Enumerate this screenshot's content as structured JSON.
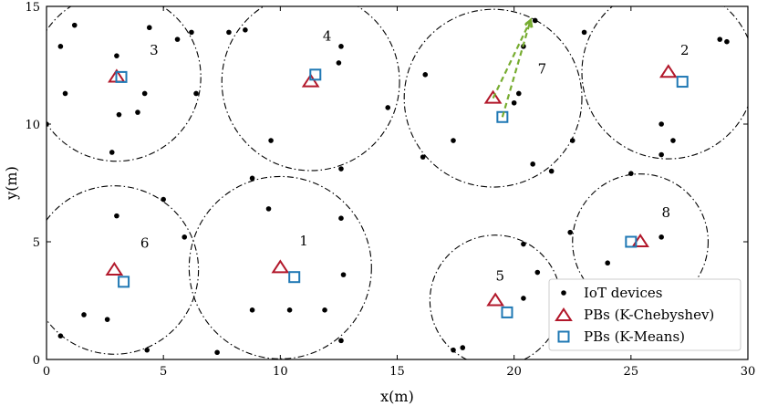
{
  "chart_data": {
    "type": "scatter",
    "xlabel": "x(m)",
    "ylabel": "y(m)",
    "xlim": [
      0,
      30
    ],
    "ylim": [
      0,
      15
    ],
    "xticks": [
      0,
      5,
      10,
      15,
      20,
      25,
      30
    ],
    "yticks": [
      0,
      5,
      10,
      15
    ],
    "grid": false,
    "legend_placement": "bottom-right",
    "colors": {
      "iot": "#000000",
      "chebyshev": "#b2182b",
      "kmeans": "#1f78b4",
      "circle": "#000000",
      "arrow": "#77ac30"
    },
    "series": [
      {
        "name": "IoT devices",
        "marker": "dot",
        "points": [
          [
            0.6,
            13.3
          ],
          [
            1.2,
            14.2
          ],
          [
            0.8,
            11.3
          ],
          [
            3.0,
            12.9
          ],
          [
            4.4,
            14.1
          ],
          [
            5.6,
            13.6
          ],
          [
            6.2,
            13.9
          ],
          [
            6.4,
            11.3
          ],
          [
            4.2,
            11.3
          ],
          [
            3.1,
            10.4
          ],
          [
            3.9,
            10.5
          ],
          [
            2.8,
            8.8
          ],
          [
            0.0,
            10.0
          ],
          [
            7.8,
            13.9
          ],
          [
            8.5,
            14.0
          ],
          [
            12.6,
            13.3
          ],
          [
            12.5,
            12.6
          ],
          [
            14.6,
            10.7
          ],
          [
            9.6,
            9.3
          ],
          [
            12.6,
            8.1
          ],
          [
            16.2,
            12.1
          ],
          [
            17.4,
            9.3
          ],
          [
            20.4,
            13.3
          ],
          [
            20.9,
            14.4
          ],
          [
            20.2,
            11.3
          ],
          [
            20.0,
            10.9
          ],
          [
            22.5,
            9.3
          ],
          [
            16.1,
            8.6
          ],
          [
            20.8,
            8.3
          ],
          [
            21.6,
            8.0
          ],
          [
            23.0,
            13.9
          ],
          [
            28.8,
            13.6
          ],
          [
            29.1,
            13.5
          ],
          [
            26.3,
            10.0
          ],
          [
            26.8,
            9.3
          ],
          [
            26.3,
            8.7
          ],
          [
            3.0,
            6.1
          ],
          [
            5.0,
            6.8
          ],
          [
            5.9,
            5.2
          ],
          [
            1.6,
            1.9
          ],
          [
            2.6,
            1.7
          ],
          [
            0.6,
            1.0
          ],
          [
            4.3,
            0.4
          ],
          [
            8.8,
            7.7
          ],
          [
            9.5,
            6.4
          ],
          [
            12.6,
            6.0
          ],
          [
            12.7,
            3.6
          ],
          [
            8.8,
            2.1
          ],
          [
            10.4,
            2.1
          ],
          [
            11.9,
            2.1
          ],
          [
            12.6,
            0.8
          ],
          [
            7.3,
            0.3
          ],
          [
            25.0,
            7.9
          ],
          [
            22.4,
            5.4
          ],
          [
            26.3,
            5.2
          ],
          [
            24.0,
            4.1
          ],
          [
            20.4,
            4.9
          ],
          [
            21.0,
            3.7
          ],
          [
            20.4,
            2.6
          ],
          [
            17.4,
            0.4
          ],
          [
            17.8,
            0.5
          ]
        ]
      },
      {
        "name": "PBs (K-Chebyshev)",
        "marker": "triangle",
        "points": [
          [
            10.0,
            3.9
          ],
          [
            26.6,
            12.2
          ],
          [
            3.0,
            12.0
          ],
          [
            11.3,
            11.8
          ],
          [
            19.2,
            2.5
          ],
          [
            2.9,
            3.8
          ],
          [
            19.1,
            11.1
          ],
          [
            25.4,
            5.0
          ]
        ]
      },
      {
        "name": "PBs (K-Means)",
        "marker": "square",
        "points": [
          [
            10.6,
            3.5
          ],
          [
            27.2,
            11.8
          ],
          [
            3.2,
            12.0
          ],
          [
            11.5,
            12.1
          ],
          [
            19.7,
            2.0
          ],
          [
            3.3,
            3.3
          ],
          [
            19.5,
            10.3
          ],
          [
            25.0,
            5.0
          ]
        ]
      }
    ],
    "clusters": [
      {
        "label": "1",
        "center": [
          10.0,
          3.9
        ],
        "radius": 3.9,
        "label_pos": [
          11.0,
          5.0
        ]
      },
      {
        "label": "2",
        "center": [
          26.6,
          12.2
        ],
        "radius": 3.7,
        "label_pos": [
          27.3,
          13.1
        ]
      },
      {
        "label": "3",
        "center": [
          3.0,
          12.0
        ],
        "radius": 3.6,
        "label_pos": [
          4.6,
          13.1
        ]
      },
      {
        "label": "4",
        "center": [
          11.3,
          11.8
        ],
        "radius": 3.8,
        "label_pos": [
          12.0,
          13.7
        ]
      },
      {
        "label": "5",
        "center": [
          19.2,
          2.5
        ],
        "radius": 2.8,
        "label_pos": [
          19.4,
          3.5
        ]
      },
      {
        "label": "6",
        "center": [
          2.9,
          3.8
        ],
        "radius": 3.6,
        "label_pos": [
          4.2,
          4.9
        ]
      },
      {
        "label": "7",
        "center": [
          19.1,
          11.1
        ],
        "radius": 3.8,
        "label_pos": [
          21.2,
          12.3
        ]
      },
      {
        "label": "8",
        "center": [
          25.4,
          5.0
        ],
        "radius": 2.9,
        "label_pos": [
          26.5,
          6.2
        ]
      }
    ],
    "arrow": {
      "from": [
        19.5,
        10.3
      ],
      "to": [
        20.7,
        14.4
      ],
      "tail_offset": [
        19.1,
        11.1
      ],
      "style": "dashed"
    }
  }
}
